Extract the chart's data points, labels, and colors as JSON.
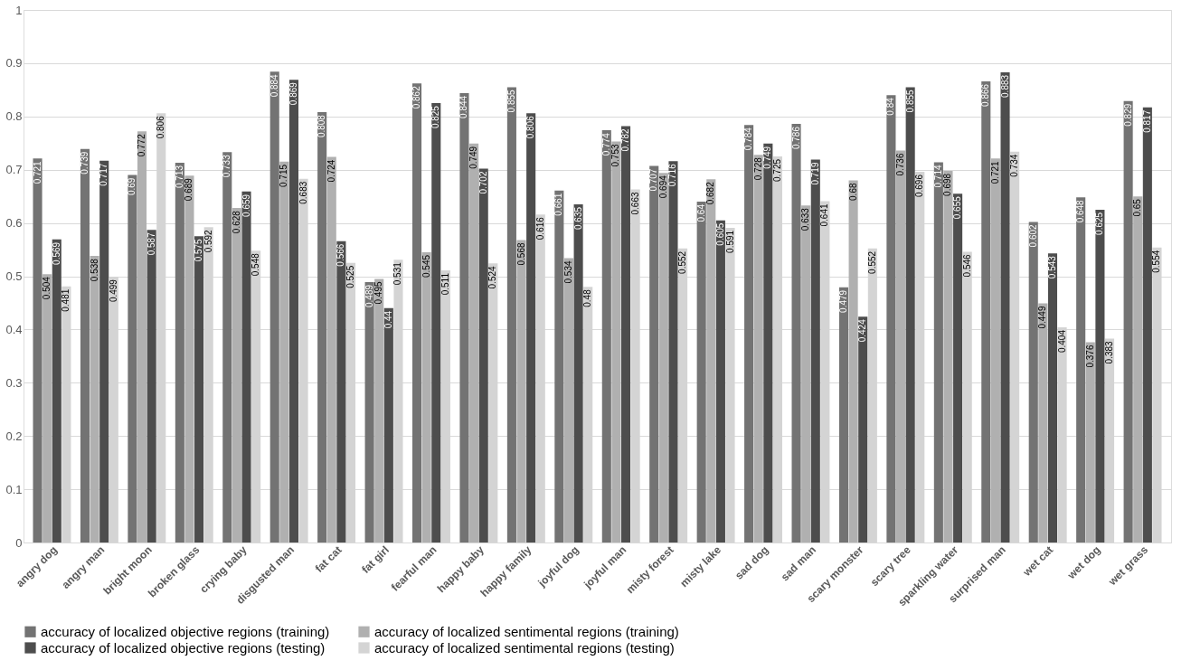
{
  "chart_data": {
    "type": "bar",
    "categories": [
      "angry dog",
      "angry man",
      "bright moon",
      "broken glass",
      "crying baby",
      "disgusted man",
      "fat cat",
      "fat girl",
      "fearful man",
      "happy baby",
      "happy family",
      "joyful dog",
      "joyful man",
      "misty forest",
      "misty lake",
      "sad dog",
      "sad man",
      "scary monster",
      "scary tree",
      "sparkling water",
      "surprised man",
      "wet cat",
      "wet dog",
      "wet grass"
    ],
    "series": [
      {
        "name": "accuracy of localized objective regions (training)",
        "color": "#737373",
        "values": [
          0.721,
          0.739,
          0.69,
          0.713,
          0.733,
          0.884,
          0.808,
          0.489,
          0.862,
          0.844,
          0.855,
          0.661,
          0.774,
          0.707,
          0.64,
          0.784,
          0.786,
          0.479,
          0.84,
          0.714,
          0.866,
          0.602,
          0.648,
          0.829
        ]
      },
      {
        "name": "accuracy of localized sentimental regions (training)",
        "color": "#b0b0b0",
        "values": [
          0.504,
          0.538,
          0.772,
          0.689,
          0.628,
          0.715,
          0.724,
          0.495,
          0.545,
          0.749,
          0.568,
          0.534,
          0.753,
          0.694,
          0.682,
          0.728,
          0.633,
          0.68,
          0.736,
          0.698,
          0.721,
          0.449,
          0.376,
          0.65
        ]
      },
      {
        "name": "accuracy of localized objective regions (testing)",
        "color": "#4d4d4d",
        "values": [
          0.569,
          0.717,
          0.587,
          0.575,
          0.659,
          0.869,
          0.566,
          0.44,
          0.825,
          0.702,
          0.806,
          0.635,
          0.782,
          0.716,
          0.605,
          0.749,
          0.719,
          0.424,
          0.855,
          0.655,
          0.883,
          0.543,
          0.625,
          0.817
        ]
      },
      {
        "name": "accuracy of localized sentimental regions (testing)",
        "color": "#d4d4d4",
        "values": [
          0.481,
          0.499,
          0.806,
          0.592,
          0.548,
          0.683,
          0.525,
          0.531,
          0.511,
          0.524,
          0.616,
          0.48,
          0.663,
          0.552,
          0.591,
          0.725,
          0.641,
          0.552,
          0.696,
          0.546,
          0.734,
          0.404,
          0.383,
          0.554
        ]
      }
    ],
    "ylim": [
      0,
      1
    ],
    "yticks": [
      0,
      0.1,
      0.2,
      0.3,
      0.4,
      0.5,
      0.6,
      0.7,
      0.8,
      0.9,
      1
    ],
    "grid": "y",
    "legend": "bottom",
    "data_labels": true
  }
}
